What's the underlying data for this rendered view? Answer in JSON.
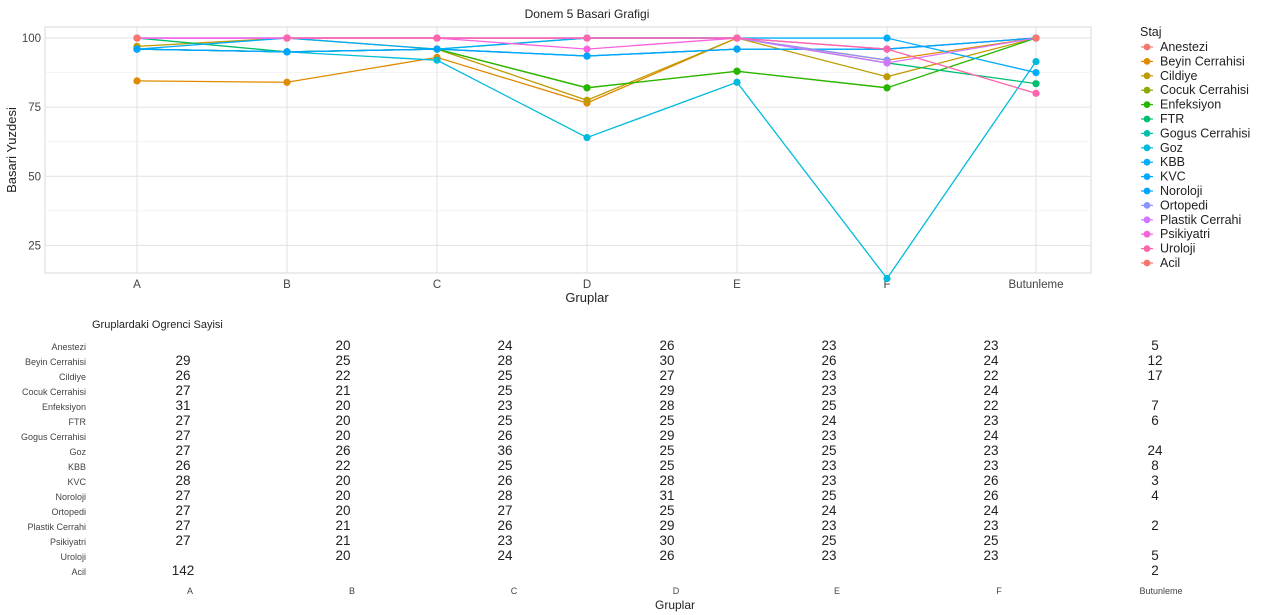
{
  "chart_data": [
    {
      "type": "line",
      "title": "Donem 5 Basari Grafigi",
      "xlabel": "Gruplar",
      "ylabel": "Basari Yuzdesi",
      "categories": [
        "A",
        "B",
        "C",
        "D",
        "E",
        "F",
        "Butunleme"
      ],
      "ylim": [
        15,
        104
      ],
      "yticks": [
        25,
        50,
        75,
        100
      ],
      "grid": true,
      "legend_title": "Staj",
      "legend_position": "right",
      "series": [
        {
          "name": "Anestezi",
          "color": "#F8766D",
          "values": [
            null,
            100,
            100,
            100,
            100,
            96,
            100
          ]
        },
        {
          "name": "Beyin Cerrahisi",
          "color": "#E18A00",
          "values": [
            84.5,
            84,
            93,
            76.5,
            100,
            92,
            100
          ]
        },
        {
          "name": "Cildiye",
          "color": "#BE9C00",
          "values": [
            97,
            100,
            96,
            77.5,
            100,
            86,
            100
          ]
        },
        {
          "name": "Cocuk Cerrahisi",
          "color": "#8CAB00",
          "values": [
            96,
            95,
            96,
            82,
            88,
            82,
            null
          ]
        },
        {
          "name": "Enfeksiyon",
          "color": "#24B700",
          "values": [
            96,
            95,
            96,
            82,
            88,
            82,
            100
          ]
        },
        {
          "name": "FTR",
          "color": "#00BE70",
          "values": [
            100,
            95,
            96,
            100,
            100,
            91,
            83.5
          ]
        },
        {
          "name": "Gogus Cerrahisi",
          "color": "#00C1AB",
          "values": [
            96,
            95,
            96,
            93.5,
            96,
            96,
            null
          ]
        },
        {
          "name": "Goz",
          "color": "#00BBDA",
          "values": [
            96,
            95,
            92,
            64,
            84,
            13,
            91.5
          ]
        },
        {
          "name": "KBB",
          "color": "#00ACFC",
          "values": [
            96,
            100,
            96,
            100,
            100,
            100,
            87.5
          ]
        },
        {
          "name": "KVC",
          "color": "#00A9FF",
          "values": [
            96,
            95,
            96,
            93.5,
            96,
            96,
            100
          ]
        },
        {
          "name": "Noroloji",
          "color": "#00A5FF",
          "values": [
            96,
            95,
            96,
            93.5,
            96,
            96,
            100
          ]
        },
        {
          "name": "Ortopedi",
          "color": "#8B93FF",
          "values": [
            100,
            100,
            100,
            100,
            100,
            92,
            null
          ]
        },
        {
          "name": "Plastik Cerrahi",
          "color": "#D575FE",
          "values": [
            100,
            100,
            100,
            100,
            100,
            91,
            100
          ]
        },
        {
          "name": "Psikiyatri",
          "color": "#F962DD",
          "values": [
            100,
            100,
            100,
            96,
            100,
            96,
            null
          ]
        },
        {
          "name": "Uroloji",
          "color": "#FF65AC",
          "values": [
            null,
            100,
            100,
            100,
            100,
            96,
            80
          ]
        },
        {
          "name": "Acil",
          "color": "#F8766D",
          "values": [
            100,
            null,
            null,
            null,
            null,
            null,
            100
          ]
        }
      ]
    },
    {
      "type": "table",
      "title": "Gruplardaki Ogrenci Sayisi",
      "xlabel": "Gruplar",
      "columns": [
        "A",
        "B",
        "C",
        "D",
        "E",
        "F",
        "Butunleme"
      ],
      "rows": [
        {
          "label": "Anestezi",
          "values": [
            "",
            "20",
            "24",
            "26",
            "23",
            "23",
            "5"
          ]
        },
        {
          "label": "Beyin Cerrahisi",
          "values": [
            "29",
            "25",
            "28",
            "30",
            "26",
            "24",
            "12"
          ]
        },
        {
          "label": "Cildiye",
          "values": [
            "26",
            "22",
            "25",
            "27",
            "23",
            "22",
            "17"
          ]
        },
        {
          "label": "Cocuk Cerrahisi",
          "values": [
            "27",
            "21",
            "25",
            "29",
            "23",
            "24",
            ""
          ]
        },
        {
          "label": "Enfeksiyon",
          "values": [
            "31",
            "20",
            "23",
            "28",
            "25",
            "22",
            "7"
          ]
        },
        {
          "label": "FTR",
          "values": [
            "27",
            "20",
            "25",
            "25",
            "24",
            "23",
            "6"
          ]
        },
        {
          "label": "Gogus Cerrahisi",
          "values": [
            "27",
            "20",
            "26",
            "29",
            "23",
            "24",
            ""
          ]
        },
        {
          "label": "Goz",
          "values": [
            "27",
            "26",
            "36",
            "25",
            "25",
            "23",
            "24"
          ]
        },
        {
          "label": "KBB",
          "values": [
            "26",
            "22",
            "25",
            "25",
            "23",
            "23",
            "8"
          ]
        },
        {
          "label": "KVC",
          "values": [
            "28",
            "20",
            "26",
            "28",
            "23",
            "26",
            "3"
          ]
        },
        {
          "label": "Noroloji",
          "values": [
            "27",
            "20",
            "28",
            "31",
            "25",
            "26",
            "4"
          ]
        },
        {
          "label": "Ortopedi",
          "values": [
            "27",
            "20",
            "27",
            "25",
            "24",
            "24",
            ""
          ]
        },
        {
          "label": "Plastik Cerrahi",
          "values": [
            "27",
            "21",
            "26",
            "29",
            "23",
            "23",
            "2"
          ]
        },
        {
          "label": "Psikiyatri",
          "values": [
            "27",
            "21",
            "23",
            "30",
            "25",
            "25",
            ""
          ]
        },
        {
          "label": "Uroloji",
          "values": [
            "",
            "20",
            "24",
            "26",
            "23",
            "23",
            "5"
          ]
        },
        {
          "label": "Acil",
          "values": [
            "142",
            "",
            "",
            "",
            "",
            "",
            "2"
          ]
        }
      ]
    }
  ]
}
